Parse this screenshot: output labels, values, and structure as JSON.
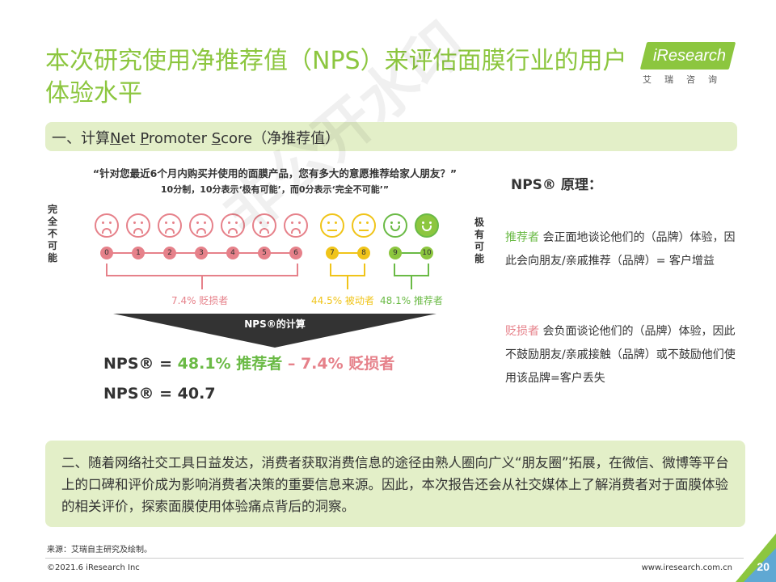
{
  "title": "本次研究使用净推荐值（NPS）来评估面膜行业的用户体验水平",
  "logo": {
    "text": "iResearch",
    "sub": "艾瑞咨询"
  },
  "section1": {
    "prefix": "一、计算",
    "n": "N",
    "et": "et ",
    "p": "P",
    "romoter": "romoter ",
    "s": "S",
    "core": "core（净推荐值）"
  },
  "question": "“针对您最近6个月内购买并使用的面膜产品，您有多大的意愿推荐给家人朋友？”",
  "question_note": "10分制，10分表示‘极有可能’，而0分表示‘完全不可能’”",
  "left_label": "完全不可能",
  "right_label": "极有可能",
  "scale": [
    "0",
    "1",
    "2",
    "3",
    "4",
    "5",
    "6",
    "7",
    "8",
    "9",
    "10"
  ],
  "segments": {
    "detractor": "7.4% 贬损者",
    "passive": "44.5% 被动者",
    "promoter": "48.1% 推荐者"
  },
  "funnel_label": "NPS®的计算",
  "formula": {
    "prefix": "NPS® = ",
    "promoter": "48.1% 推荐者",
    "minus": " – ",
    "detractor": "7.4% 贬损者"
  },
  "result": "NPS® = 40.7",
  "principle": {
    "head": "NPS® 原理：",
    "promoter_term": "推荐者",
    "promoter_text": " 会正面地谈论他们的（品牌）体验，因此会向朋友/亲戚推荐（品牌）= 客户增益",
    "detractor_term": "贬损者",
    "detractor_text": " 会负面谈论他们的（品牌）体验，因此不鼓励朋友/亲戚接触（品牌）或不鼓励他们使用该品牌=客户丢失"
  },
  "section2": "二、随着网络社交工具日益发达，消费者获取消费信息的途径由熟人圈向广义“朋友圈”拓展，在微信、微博等平台上的口碑和评价成为影响消费者决策的重要信息来源。因此，本次报告还会从社交媒体上了解消费者对于面膜体验的相关评价，探索面膜使用体验痛点背后的洞察。",
  "source": "来源：艾瑞自主研究及绘制。",
  "copyright": "©2021.6 iResearch Inc",
  "website": "www.iresearch.com.cn",
  "page": "20",
  "watermark": "非公开水印",
  "colors": {
    "accent": "#8cc63f",
    "detractor": "#e6818a",
    "passive": "#f0c419",
    "promoter": "#6aba45"
  }
}
